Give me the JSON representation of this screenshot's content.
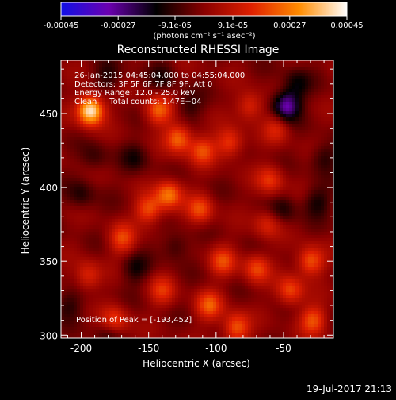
{
  "colorbar": {
    "tick_labels": [
      "-0.00045",
      "-0.00027",
      "-9.1e-05",
      "9.1e-05",
      "0.00027",
      "0.00045"
    ],
    "tick_values": [
      -0.00045,
      -0.00027,
      -9.1e-05,
      9.1e-05,
      0.00027,
      0.00045
    ],
    "range": [
      -0.00045,
      0.00045
    ],
    "unit_label": "(photons cm⁻² s⁻¹ asec⁻²)",
    "colors": [
      "#1010e6",
      "#6b00b0",
      "#000000",
      "#8a0000",
      "#e02000",
      "#ff8c00",
      "#ffffff"
    ]
  },
  "chart_data": {
    "type": "heatmap",
    "title": "Reconstructed RHESSI Image",
    "xlabel": "Heliocentric X (arcsec)",
    "ylabel": "Heliocentric Y (arcsec)",
    "xlim": [
      -215,
      -13
    ],
    "ylim": [
      298,
      486
    ],
    "xticks": [
      -200,
      -150,
      -100,
      -50
    ],
    "xtick_labels": [
      "-200",
      "-150",
      "-100",
      "-50"
    ],
    "yticks": [
      300,
      350,
      400,
      450
    ],
    "ytick_labels": [
      "300",
      "350",
      "400",
      "450"
    ],
    "annotations": [
      "26-Jan-2015 04:45:04.000 to 04:55:04.000",
      "Detectors: 3F 5F 6F 7F 8F 9F, Att 0",
      "Energy Range: 12.0 - 25.0 keV",
      "Clean     Total counts: 1.47E+04"
    ],
    "peak_label": "Position of Peak = [-193,452]",
    "peak": {
      "x": -193,
      "y": 452,
      "value": 0.00045
    },
    "sources": [
      {
        "x": -193,
        "y": 452,
        "value": 0.00045
      },
      {
        "x": -143,
        "y": 452,
        "value": 0.00024
      },
      {
        "x": -128,
        "y": 433,
        "value": 0.00026
      },
      {
        "x": -110,
        "y": 425,
        "value": 0.0002
      },
      {
        "x": -90,
        "y": 430,
        "value": 0.0002
      },
      {
        "x": -75,
        "y": 455,
        "value": 0.00017
      },
      {
        "x": -55,
        "y": 440,
        "value": 0.00014
      },
      {
        "x": -60,
        "y": 405,
        "value": 0.00018
      },
      {
        "x": -135,
        "y": 395,
        "value": 0.00027
      },
      {
        "x": -150,
        "y": 385,
        "value": 0.00022
      },
      {
        "x": -170,
        "y": 365,
        "value": 0.0002
      },
      {
        "x": -195,
        "y": 340,
        "value": 0.00016
      },
      {
        "x": -175,
        "y": 310,
        "value": 0.00018
      },
      {
        "x": -140,
        "y": 330,
        "value": 0.00016
      },
      {
        "x": -112,
        "y": 385,
        "value": 0.0002
      },
      {
        "x": -95,
        "y": 350,
        "value": 0.00019
      },
      {
        "x": -105,
        "y": 320,
        "value": 0.00022
      },
      {
        "x": -85,
        "y": 305,
        "value": 0.00024
      },
      {
        "x": -70,
        "y": 345,
        "value": 0.0002
      },
      {
        "x": -45,
        "y": 330,
        "value": 0.00021
      },
      {
        "x": -30,
        "y": 350,
        "value": 0.00024
      },
      {
        "x": -28,
        "y": 310,
        "value": 0.00022
      },
      {
        "x": -62,
        "y": 375,
        "value": 0.00014
      },
      {
        "x": -40,
        "y": 470,
        "value": -0.00012
      },
      {
        "x": -48,
        "y": 455,
        "value": -0.0003
      },
      {
        "x": -200,
        "y": 395,
        "value": -0.0001
      },
      {
        "x": -190,
        "y": 420,
        "value": -8e-05
      },
      {
        "x": -160,
        "y": 345,
        "value": -0.00012
      },
      {
        "x": -180,
        "y": 475,
        "value": -0.0001
      },
      {
        "x": -140,
        "y": 475,
        "value": -9e-05
      },
      {
        "x": -130,
        "y": 360,
        "value": -0.0001
      },
      {
        "x": -50,
        "y": 385,
        "value": -0.0001
      },
      {
        "x": -20,
        "y": 420,
        "value": -0.00011
      },
      {
        "x": -25,
        "y": 390,
        "value": -0.00012
      },
      {
        "x": -160,
        "y": 420,
        "value": -0.0001
      },
      {
        "x": -120,
        "y": 455,
        "value": -9e-05
      },
      {
        "x": -210,
        "y": 320,
        "value": -0.0001
      },
      {
        "x": -180,
        "y": 300,
        "value": -8e-05
      }
    ]
  },
  "footer": {
    "date_stamp": "19-Jul-2017 21:13"
  }
}
